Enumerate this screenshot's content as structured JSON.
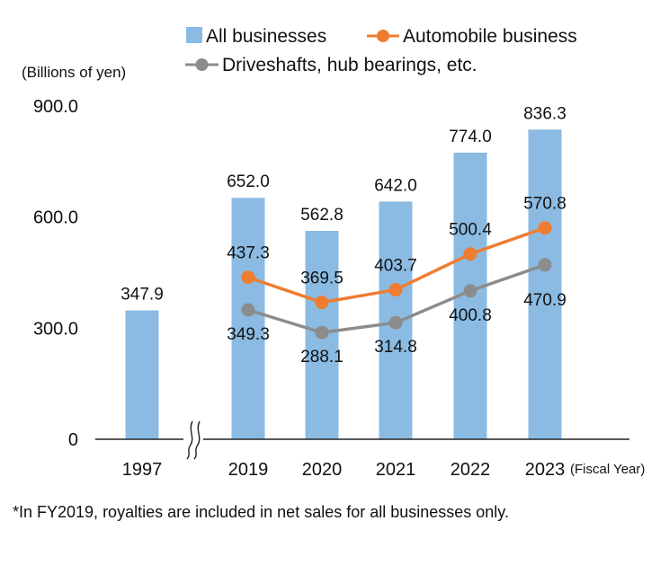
{
  "chart_data": {
    "type": "bar",
    "categories": [
      "1997",
      "2019",
      "2020",
      "2021",
      "2022",
      "2023"
    ],
    "series": [
      {
        "name": "All businesses",
        "type": "bar",
        "values": [
          347.9,
          652.0,
          562.8,
          642.0,
          774.0,
          836.3
        ],
        "labels": [
          "347.9",
          "652.0",
          "562.8",
          "642.0",
          "774.0",
          "836.3"
        ],
        "color": "#8bbbe3"
      },
      {
        "name": "Automobile business",
        "type": "line",
        "values": [
          null,
          437.3,
          369.5,
          403.7,
          500.4,
          570.8
        ],
        "labels": [
          "",
          "437.3",
          "369.5",
          "403.7",
          "500.4",
          "570.8"
        ],
        "color": "#ee7d31"
      },
      {
        "name": "Driveshafts, hub bearings, etc.",
        "type": "line",
        "values": [
          null,
          349.3,
          288.1,
          314.8,
          400.8,
          470.9
        ],
        "labels": [
          "",
          "349.3",
          "288.1",
          "314.8",
          "400.8",
          "470.9"
        ],
        "color": "#8c8c8c"
      }
    ],
    "ylabel": "(Billions of yen)",
    "xlabel": "(Fiscal Year)",
    "yticks": [
      0,
      300,
      600,
      900
    ],
    "ytick_labels": [
      "0",
      "300.0",
      "600.0",
      "900.0"
    ],
    "ylim": [
      0,
      900
    ],
    "axis_break_after": "1997",
    "grid": false,
    "legend_position": "top"
  },
  "footnote": "*In FY2019, royalties are included in net sales for all businesses only."
}
